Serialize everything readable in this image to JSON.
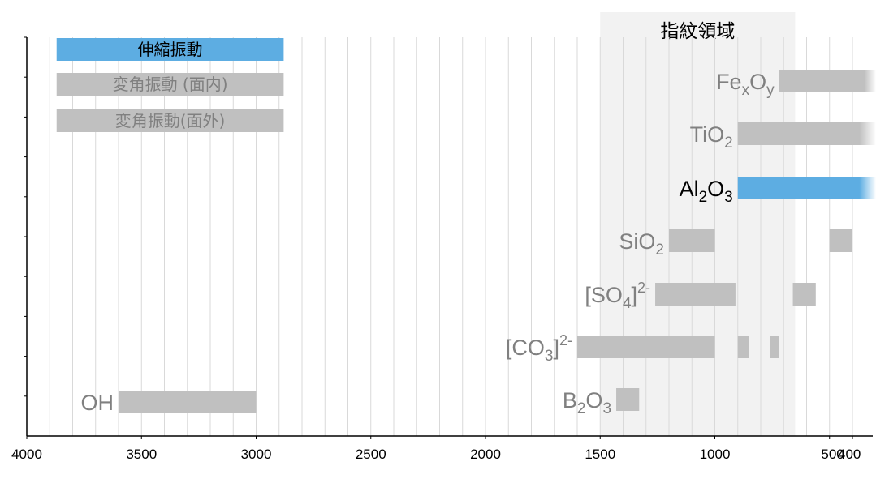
{
  "chart_data": {
    "type": "bar",
    "orientation": "horizontal-range",
    "xlim": [
      4000,
      400
    ],
    "x_ticks": [
      4000,
      3500,
      3000,
      2500,
      2000,
      1500,
      1000,
      500,
      400
    ],
    "x_tick_labels": [
      "4000",
      "3500",
      "3000",
      "2500",
      "2000",
      "1500",
      "1000",
      "500",
      "400"
    ],
    "minor_grid_step": 100,
    "grid": true,
    "fingerprint_region": {
      "label": "指紋領域",
      "x_range": [
        1500,
        650
      ],
      "color": "#f2f2f2"
    },
    "legend": {
      "placement": "top-left",
      "entries": [
        {
          "label": "伸縮振動",
          "color": "#5dade2",
          "text_color": "#000000"
        },
        {
          "label": "変角振動 (面内)",
          "color": "#c0c0c0",
          "text_color": "#808080"
        },
        {
          "label": "変角振動(面外)",
          "color": "#c0c0c0",
          "text_color": "#808080"
        }
      ]
    },
    "rows": [
      {
        "name": "Fe",
        "sub1": "x",
        "name2": "O",
        "sub2": "y",
        "color_name": "#808080",
        "highlight": false,
        "ranges": [
          [
            720,
            400
          ]
        ],
        "fade_out": true
      },
      {
        "name": "TiO",
        "sub1": "2",
        "name2": "",
        "sub2": "",
        "color_name": "#808080",
        "highlight": false,
        "ranges": [
          [
            900,
            400
          ]
        ],
        "fade_out": true
      },
      {
        "name": "Al",
        "sub1": "2",
        "name2": "O",
        "sub2": "3",
        "color_name": "#000000",
        "highlight": true,
        "ranges": [
          [
            900,
            400
          ]
        ],
        "fade_out": true
      },
      {
        "name": "SiO",
        "sub1": "2",
        "name2": "",
        "sub2": "",
        "color_name": "#808080",
        "highlight": false,
        "ranges": [
          [
            1200,
            1000
          ],
          [
            500,
            400
          ]
        ]
      },
      {
        "name": "[SO",
        "sub1": "4",
        "name2": "]",
        "sup": "2-",
        "color_name": "#808080",
        "highlight": false,
        "ranges": [
          [
            1260,
            910
          ],
          [
            660,
            560
          ]
        ]
      },
      {
        "name": "[CO",
        "sub1": "3",
        "name2": "]",
        "sup": "2-",
        "color_name": "#808080",
        "highlight": false,
        "ranges": [
          [
            1600,
            1000
          ],
          [
            900,
            850
          ],
          [
            760,
            720
          ]
        ]
      },
      {
        "name": "B",
        "sub1": "2",
        "name2": "O",
        "sub2": "3",
        "color_name": "#808080",
        "highlight": false,
        "ranges": [
          [
            1430,
            1330
          ]
        ]
      },
      {
        "name": "OH",
        "sub1": "",
        "name2": "",
        "sub2": "",
        "color_name": "#808080",
        "highlight": false,
        "ranges": [
          [
            3600,
            3000
          ]
        ]
      }
    ]
  }
}
